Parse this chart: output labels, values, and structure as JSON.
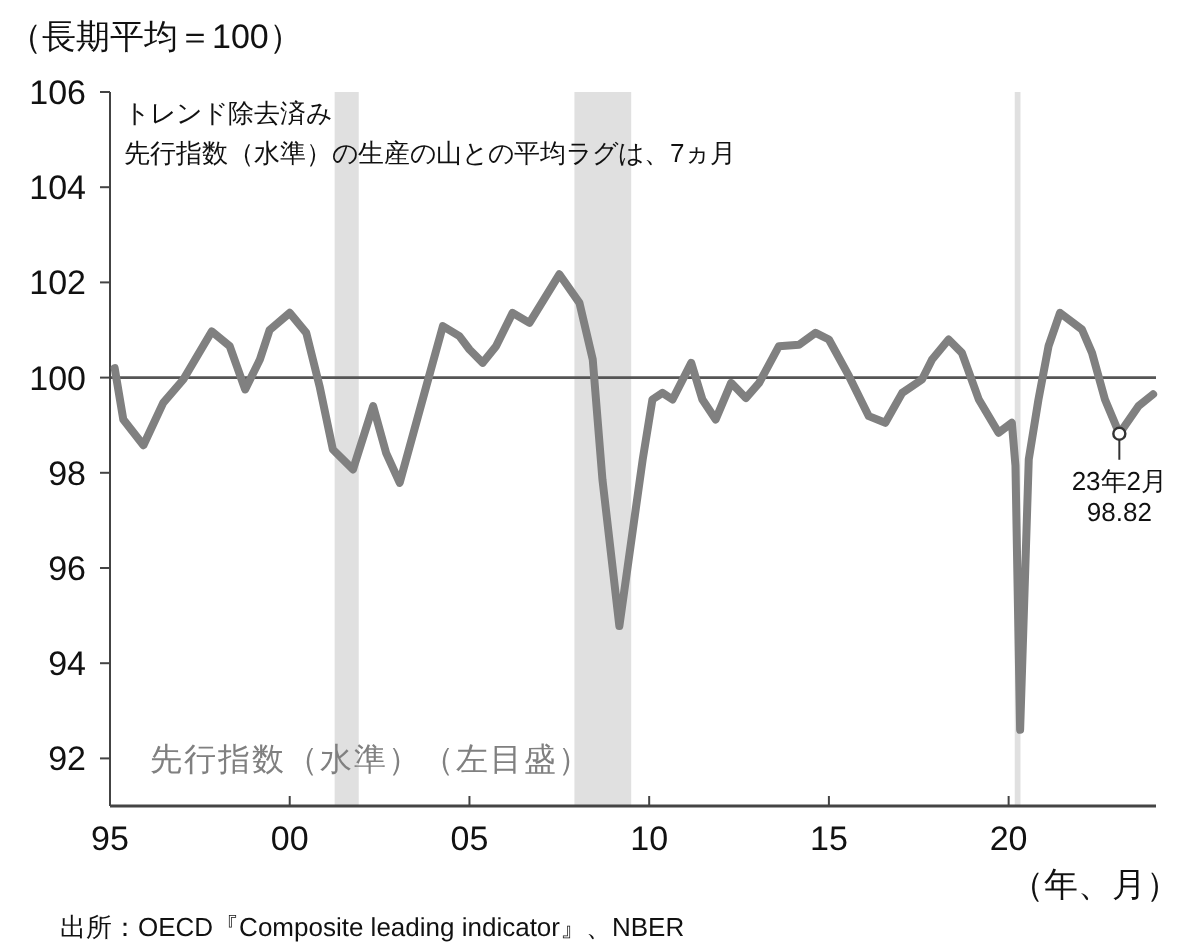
{
  "chart_data": {
    "type": "line",
    "ylabel": "（長期平均＝100）",
    "xlabel": "（年、月）",
    "xlim": [
      1995,
      2024.1
    ],
    "ylim": [
      91,
      106
    ],
    "xticks": [
      {
        "value": 1995,
        "label": "95"
      },
      {
        "value": 2000,
        "label": "00"
      },
      {
        "value": 2005,
        "label": "05"
      },
      {
        "value": 2010,
        "label": "10"
      },
      {
        "value": 2015,
        "label": "15"
      },
      {
        "value": 2020,
        "label": "20"
      }
    ],
    "yticks": [
      92,
      94,
      96,
      98,
      100,
      102,
      104,
      106
    ],
    "grid": false,
    "legend": false,
    "series": [
      {
        "name": "先行指数（水準）（左目盛）",
        "color": "#808080",
        "x": [
          1995.13,
          1995.37,
          1995.93,
          1996.48,
          1997.04,
          1997.83,
          1998.33,
          1998.76,
          1999.17,
          1999.44,
          2000.0,
          2000.46,
          2000.83,
          2001.2,
          2001.76,
          2002.32,
          2002.68,
          2003.06,
          2003.8,
          2004.26,
          2004.72,
          2005.0,
          2005.37,
          2005.74,
          2006.2,
          2006.67,
          2007.5,
          2008.06,
          2008.43,
          2008.7,
          2009.17,
          2009.82,
          2010.09,
          2010.37,
          2010.65,
          2011.17,
          2011.48,
          2011.85,
          2012.28,
          2012.69,
          2013.06,
          2013.61,
          2014.17,
          2014.63,
          2015.0,
          2015.56,
          2016.11,
          2016.57,
          2017.04,
          2017.59,
          2017.87,
          2018.33,
          2018.7,
          2019.17,
          2019.72,
          2020.09,
          2020.19,
          2020.32,
          2020.56,
          2020.83,
          2021.11,
          2021.43,
          2022.04,
          2022.32,
          2022.68,
          2023.08,
          2023.61,
          2024.02
        ],
        "values": [
          100.2,
          99.12,
          98.58,
          99.47,
          99.96,
          100.97,
          100.66,
          99.75,
          100.38,
          101.0,
          101.36,
          100.94,
          99.82,
          98.49,
          98.07,
          99.4,
          98.42,
          97.79,
          99.82,
          101.08,
          100.87,
          100.59,
          100.31,
          100.66,
          101.36,
          101.15,
          102.17,
          101.57,
          100.38,
          97.86,
          94.78,
          98.28,
          99.54,
          99.68,
          99.54,
          100.31,
          99.54,
          99.12,
          99.89,
          99.57,
          99.89,
          100.66,
          100.69,
          100.94,
          100.8,
          100.03,
          99.19,
          99.05,
          99.68,
          99.96,
          100.38,
          100.8,
          100.52,
          99.54,
          98.84,
          99.05,
          98.15,
          92.6,
          98.28,
          99.54,
          100.66,
          101.36,
          101.01,
          100.52,
          99.54,
          98.82,
          99.4,
          99.65
        ]
      }
    ],
    "ref_lines": [
      {
        "axis": "y",
        "value": 100,
        "color": "#555555"
      }
    ],
    "bands": [
      {
        "axis": "x",
        "from": 2001.25,
        "to": 2001.92,
        "color": "#e0e0e0"
      },
      {
        "axis": "x",
        "from": 2007.92,
        "to": 2009.5,
        "color": "#e0e0e0"
      },
      {
        "axis": "x",
        "from": 2020.17,
        "to": 2020.33,
        "color": "#e0e0e0"
      }
    ],
    "annotations": [
      "トレンド除去済み",
      "先行指数（水準）の生産の山との平均ラグは、7ヵ月",
      {
        "text": "23年2月\n98.82",
        "x": 2023.08,
        "y": 98.82
      },
      "出所：OECD『Composite leading indicator』、NBER"
    ]
  }
}
